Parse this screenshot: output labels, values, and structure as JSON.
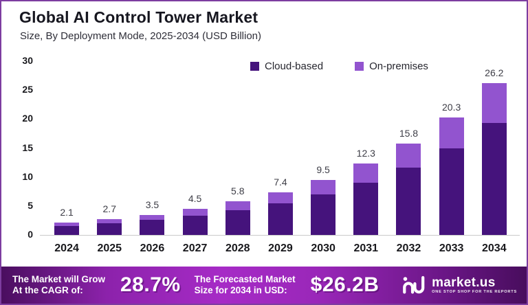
{
  "title": "Global AI Control Tower Market",
  "subtitle": "Size, By Deployment Mode, 2025-2034 (USD Billion)",
  "legend": [
    {
      "label": "Cloud-based",
      "color": "#45137c"
    },
    {
      "label": "On-premises",
      "color": "#9254cf"
    }
  ],
  "chart_data": {
    "type": "bar",
    "stacked": true,
    "title": "Global AI Control Tower Market Size, By Deployment Mode, 2025-2034 (USD Billion)",
    "xlabel": "",
    "ylabel": "",
    "ylim": [
      0,
      30
    ],
    "yticks": [
      0,
      5,
      10,
      15,
      20,
      25,
      30
    ],
    "grid": false,
    "legend_position": "top",
    "categories": [
      "2024",
      "2025",
      "2026",
      "2027",
      "2028",
      "2029",
      "2030",
      "2031",
      "2032",
      "2033",
      "2034"
    ],
    "series": [
      {
        "name": "Cloud-based",
        "color": "#45137c",
        "values": [
          1.55,
          2.0,
          2.6,
          3.3,
          4.3,
          5.5,
          7.0,
          9.0,
          11.6,
          15.0,
          19.3
        ]
      },
      {
        "name": "On-premises",
        "color": "#9254cf",
        "values": [
          0.55,
          0.7,
          0.9,
          1.2,
          1.5,
          1.9,
          2.5,
          3.3,
          4.2,
          5.3,
          6.9
        ]
      }
    ],
    "totals": [
      2.1,
      2.7,
      3.5,
      4.5,
      5.8,
      7.4,
      9.5,
      12.3,
      15.8,
      20.3,
      26.2
    ],
    "total_labels": [
      "2.1",
      "2.7",
      "3.5",
      "4.5",
      "5.8",
      "7.4",
      "9.5",
      "12.3",
      "15.8",
      "20.3",
      "26.2"
    ]
  },
  "banner": {
    "cagr_label_line1": "The Market will Grow",
    "cagr_label_line2": "At the CAGR of:",
    "cagr_value": "28.7%",
    "forecast_label_line1": "The Forecasted Market",
    "forecast_label_line2": "Size for 2034 in USD:",
    "forecast_value": "$26.2B",
    "logo_text": "market.us",
    "logo_tagline": "ONE STOP SHOP FOR THE REPORTS"
  },
  "colors": {
    "frame_border": "#7d3da0",
    "cloud_based": "#45137c",
    "on_premises": "#9254cf",
    "banner_gradient_dark": "#4a0e5f",
    "banner_gradient_bright": "#a62bc6",
    "axis_line": "#c9c9c9"
  }
}
